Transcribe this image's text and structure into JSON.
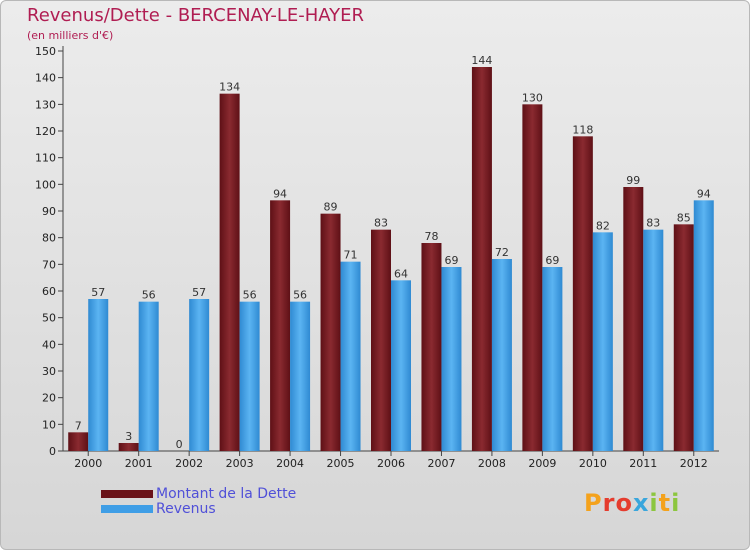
{
  "header": {
    "title": "Revenus/Dette - BERCENAY-LE-HAYER",
    "subtitle": "(en milliers d'€)"
  },
  "colors": {
    "dette": "#7a1c22",
    "revenus": "#3f9ee6",
    "title": "#b01d52",
    "legend_text": "#5050d8"
  },
  "logo": {
    "text": "Proxiti"
  },
  "chart_data": {
    "type": "bar",
    "title": "Revenus/Dette - BERCENAY-LE-HAYER",
    "ylabel": "(en milliers d'€)",
    "categories": [
      "2000",
      "2001",
      "2002",
      "2003",
      "2004",
      "2005",
      "2006",
      "2007",
      "2008",
      "2009",
      "2010",
      "2011",
      "2012"
    ],
    "series": [
      {
        "name": "Montant de la Dette",
        "color": "#7a1c22",
        "values": [
          7,
          3,
          0,
          134,
          94,
          89,
          83,
          78,
          144,
          130,
          118,
          99,
          85
        ]
      },
      {
        "name": "Revenus",
        "color": "#3f9ee6",
        "values": [
          57,
          56,
          57,
          56,
          56,
          71,
          64,
          69,
          72,
          69,
          82,
          83,
          94
        ]
      }
    ],
    "yticks": [
      0,
      10,
      20,
      30,
      40,
      50,
      60,
      70,
      80,
      90,
      100,
      110,
      120,
      130,
      140,
      150
    ],
    "ylim": [
      0,
      150
    ],
    "grid": false,
    "legend_position": "bottom-left",
    "data_labels": true
  }
}
